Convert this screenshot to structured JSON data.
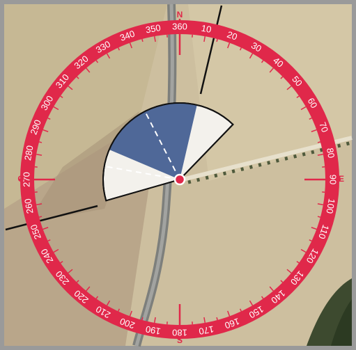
{
  "compass": {
    "labels": [
      10,
      20,
      30,
      40,
      50,
      60,
      70,
      80,
      90,
      100,
      110,
      120,
      130,
      140,
      150,
      160,
      170,
      180,
      190,
      200,
      210,
      220,
      230,
      240,
      250,
      260,
      270,
      280,
      290,
      300,
      310,
      320,
      330,
      340,
      350,
      360
    ],
    "cardinals": {
      "north": "N",
      "east": "E",
      "south": "S",
      "west": "O"
    }
  }
}
